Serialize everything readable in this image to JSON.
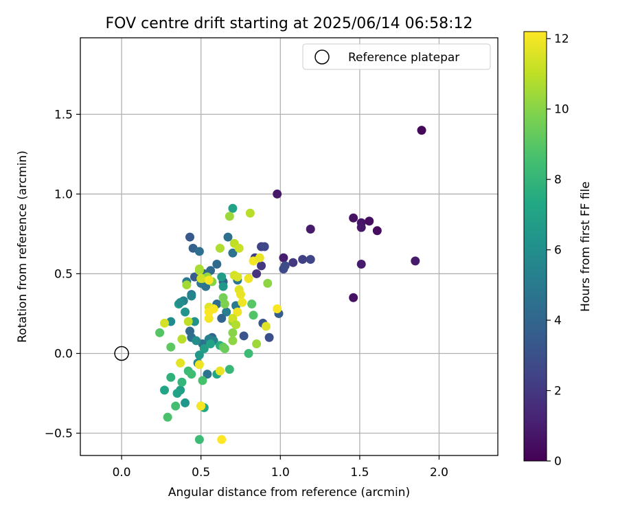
{
  "chart_data": {
    "type": "scatter",
    "title": "FOV centre drift starting at 2025/06/14 06:58:12",
    "xlabel": "Angular distance from reference (arcmin)",
    "ylabel": "Rotation from reference (arcmin)",
    "xlim": [
      -0.26,
      2.37
    ],
    "ylim": [
      -0.64,
      1.98
    ],
    "xticks": [
      0.0,
      0.5,
      1.0,
      1.5,
      2.0
    ],
    "xtick_labels": [
      "0.0",
      "0.5",
      "1.0",
      "1.5",
      "2.0"
    ],
    "yticks": [
      -0.5,
      0.0,
      0.5,
      1.0,
      1.5
    ],
    "ytick_labels": [
      "−0.5",
      "0.0",
      "0.5",
      "1.0",
      "1.5"
    ],
    "grid": true,
    "legend": {
      "placement": "top-right",
      "label": "Reference platepar"
    },
    "reference_point": {
      "x": 0.0,
      "y": 0.0
    },
    "colorbar": {
      "label": "Hours from first FF file",
      "min": 0,
      "max": 12.2,
      "ticks": [
        0,
        2,
        4,
        6,
        8,
        10,
        12
      ],
      "tick_labels": [
        "0",
        "2",
        "4",
        "6",
        "8",
        "10",
        "12"
      ],
      "colormap": "viridis"
    },
    "series": [
      {
        "values": [
          [
            1.89,
            1.4,
            0.2
          ],
          [
            1.46,
            0.85,
            0.6
          ],
          [
            1.51,
            0.82,
            0.7
          ],
          [
            1.51,
            0.79,
            0.8
          ],
          [
            1.56,
            0.83,
            0.5
          ],
          [
            1.61,
            0.77,
            0.4
          ],
          [
            1.51,
            0.56,
            0.9
          ],
          [
            1.46,
            0.35,
            0.6
          ],
          [
            1.85,
            0.58,
            0.9
          ],
          [
            1.19,
            0.78,
            0.9
          ],
          [
            0.98,
            1.0,
            0.8
          ],
          [
            1.02,
            0.6,
            1.0
          ],
          [
            1.08,
            0.57,
            2.0
          ],
          [
            1.14,
            0.59,
            2.3
          ],
          [
            1.19,
            0.59,
            2.5
          ],
          [
            1.02,
            0.53,
            2.6
          ],
          [
            1.03,
            0.55,
            2.8
          ],
          [
            0.84,
            0.6,
            2.2
          ],
          [
            0.88,
            0.67,
            2.4
          ],
          [
            0.9,
            0.67,
            2.6
          ],
          [
            0.88,
            0.55,
            2.0
          ],
          [
            0.85,
            0.5,
            1.8
          ],
          [
            0.93,
            0.1,
            3.0
          ],
          [
            0.89,
            0.19,
            3.3
          ],
          [
            0.77,
            0.11,
            3.2
          ],
          [
            0.99,
            0.25,
            3.6
          ],
          [
            0.43,
            0.73,
            3.4
          ],
          [
            0.45,
            0.66,
            3.8
          ],
          [
            0.49,
            0.64,
            4.4
          ],
          [
            0.46,
            0.48,
            3.5
          ],
          [
            0.52,
            0.5,
            4.0
          ],
          [
            0.56,
            0.52,
            4.1
          ],
          [
            0.6,
            0.56,
            4.2
          ],
          [
            0.64,
            0.45,
            3.8
          ],
          [
            0.67,
            0.73,
            4.5
          ],
          [
            0.7,
            0.63,
            4.6
          ],
          [
            0.73,
            0.46,
            4.8
          ],
          [
            0.72,
            0.3,
            5.0
          ],
          [
            0.66,
            0.26,
            5.1
          ],
          [
            0.63,
            0.22,
            3.9
          ],
          [
            0.6,
            0.31,
            4.3
          ],
          [
            0.56,
            0.28,
            4.5
          ],
          [
            0.53,
            0.42,
            4.6
          ],
          [
            0.5,
            0.44,
            4.8
          ],
          [
            0.44,
            0.37,
            4.9
          ],
          [
            0.41,
            0.45,
            5.0
          ],
          [
            0.39,
            0.33,
            5.3
          ],
          [
            0.44,
            0.36,
            5.5
          ],
          [
            0.43,
            0.14,
            4.2
          ],
          [
            0.44,
            0.1,
            4.4
          ],
          [
            0.51,
            0.06,
            4.6
          ],
          [
            0.57,
            0.1,
            4.0
          ],
          [
            0.55,
            0.09,
            5.2
          ],
          [
            0.58,
            0.08,
            5.4
          ],
          [
            0.47,
            0.08,
            6.0
          ],
          [
            0.46,
            0.2,
            6.2
          ],
          [
            0.31,
            0.2,
            5.8
          ],
          [
            0.36,
            0.31,
            6.6
          ],
          [
            0.37,
            0.32,
            5.9
          ],
          [
            0.4,
            0.26,
            6.3
          ],
          [
            0.54,
            -0.13,
            4.7
          ],
          [
            0.48,
            -0.06,
            5.6
          ],
          [
            0.49,
            -0.01,
            6.5
          ],
          [
            0.52,
            0.03,
            6.8
          ],
          [
            0.56,
            0.06,
            7.0
          ],
          [
            0.6,
            -0.13,
            7.2
          ],
          [
            0.62,
            0.05,
            7.6
          ],
          [
            0.5,
            -0.33,
            6.9
          ],
          [
            0.52,
            -0.34,
            7.3
          ],
          [
            0.63,
            0.48,
            6.7
          ],
          [
            0.7,
            0.91,
            7.0
          ],
          [
            0.64,
            0.42,
            6.4
          ],
          [
            0.37,
            -0.23,
            6.8
          ],
          [
            0.4,
            -0.31,
            6.4
          ],
          [
            0.35,
            -0.25,
            7.0
          ],
          [
            0.27,
            -0.23,
            7.2
          ],
          [
            0.31,
            -0.15,
            7.8
          ],
          [
            0.38,
            -0.18,
            8.0
          ],
          [
            0.42,
            -0.11,
            8.2
          ],
          [
            0.44,
            -0.13,
            8.4
          ],
          [
            0.34,
            -0.33,
            8.5
          ],
          [
            0.29,
            -0.4,
            8.7
          ],
          [
            0.49,
            -0.54,
            8.3
          ],
          [
            0.51,
            -0.17,
            8.6
          ],
          [
            0.68,
            -0.1,
            8.1
          ],
          [
            0.8,
            0.0,
            8.3
          ],
          [
            0.83,
            0.24,
            8.8
          ],
          [
            0.82,
            0.31,
            9.0
          ],
          [
            0.64,
            0.04,
            9.2
          ],
          [
            0.65,
            0.03,
            9.4
          ],
          [
            0.24,
            0.13,
            8.9
          ],
          [
            0.31,
            0.04,
            9.1
          ],
          [
            0.38,
            0.09,
            10.9
          ],
          [
            0.41,
            0.43,
            10.5
          ],
          [
            0.49,
            0.52,
            10.8
          ],
          [
            0.51,
            0.47,
            10.6
          ],
          [
            0.54,
            0.48,
            10.2
          ],
          [
            0.57,
            0.45,
            9.9
          ],
          [
            0.62,
            0.66,
            10.7
          ],
          [
            0.64,
            0.35,
            9.6
          ],
          [
            0.65,
            0.31,
            9.8
          ],
          [
            0.68,
            0.86,
            10.4
          ],
          [
            0.7,
            0.2,
            10.3
          ],
          [
            0.7,
            0.13,
            10.0
          ],
          [
            0.7,
            0.08,
            10.1
          ],
          [
            0.71,
            0.69,
            11.0
          ],
          [
            0.74,
            0.66,
            11.2
          ],
          [
            0.74,
            0.4,
            11.6
          ],
          [
            0.75,
            0.37,
            11.8
          ],
          [
            0.76,
            0.32,
            11.9
          ],
          [
            0.71,
            0.49,
            11.4
          ],
          [
            0.73,
            0.48,
            11.5
          ],
          [
            0.8,
            0.47,
            11.9
          ],
          [
            0.81,
            0.88,
            10.9
          ],
          [
            0.83,
            0.58,
            12.0
          ],
          [
            0.87,
            0.6,
            11.8
          ],
          [
            0.85,
            0.06,
            10.4
          ],
          [
            0.92,
            0.44,
            10.1
          ],
          [
            0.91,
            0.17,
            11.6
          ],
          [
            0.98,
            0.28,
            12.1
          ],
          [
            0.27,
            0.19,
            11.4
          ],
          [
            0.37,
            -0.06,
            11.7
          ],
          [
            0.42,
            0.2,
            11.0
          ],
          [
            0.49,
            0.53,
            10.6
          ],
          [
            0.5,
            0.47,
            11.3
          ],
          [
            0.55,
            0.29,
            11.6
          ],
          [
            0.55,
            0.22,
            12.0
          ],
          [
            0.55,
            0.26,
            12.1
          ],
          [
            0.58,
            0.28,
            12.1
          ],
          [
            0.62,
            -0.11,
            11.8
          ],
          [
            0.49,
            -0.07,
            11.9
          ],
          [
            0.5,
            -0.33,
            12.1
          ],
          [
            0.63,
            -0.54,
            12.2
          ],
          [
            0.55,
            0.46,
            12.1
          ],
          [
            0.73,
            0.26,
            11.9
          ],
          [
            0.7,
            0.22,
            11.3
          ],
          [
            0.72,
            0.18,
            10.8
          ]
        ]
      }
    ]
  }
}
